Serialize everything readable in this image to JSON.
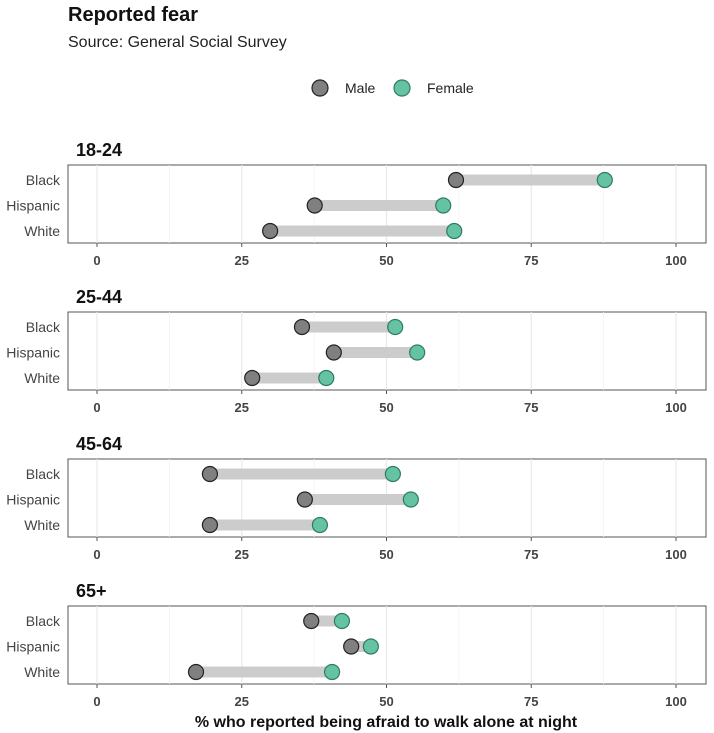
{
  "chart_data": {
    "type": "dumbbell",
    "title": "Reported fear",
    "subtitle": "Source: General Social Survey",
    "xlabel": "% who reported being afraid to walk alone at night",
    "xlim": [
      0,
      100
    ],
    "xticks": [
      0,
      25,
      50,
      75,
      100
    ],
    "grid": true,
    "legend": {
      "placement": "top",
      "entries": [
        {
          "name": "Male",
          "color": "#808080"
        },
        {
          "name": "Female",
          "color": "#66c2a5"
        }
      ]
    },
    "categories": [
      "Black",
      "Hispanic",
      "White"
    ],
    "panels": [
      {
        "label": "18-24",
        "male": [
          62.0,
          37.6,
          29.9
        ],
        "female": [
          87.7,
          59.8,
          61.7
        ]
      },
      {
        "label": "25-44",
        "male": [
          35.4,
          40.9,
          26.8
        ],
        "female": [
          51.5,
          55.3,
          39.6
        ]
      },
      {
        "label": "45-64",
        "male": [
          19.5,
          35.9,
          19.5
        ],
        "female": [
          51.1,
          54.2,
          38.5
        ]
      },
      {
        "label": "65+",
        "male": [
          37.0,
          43.9,
          17.1
        ],
        "female": [
          42.3,
          47.3,
          40.6
        ]
      }
    ]
  }
}
